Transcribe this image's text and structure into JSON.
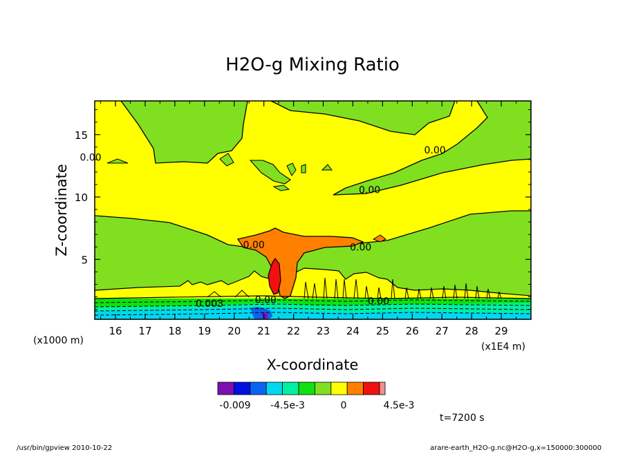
{
  "chart_data": {
    "type": "heatmap",
    "title": "H2O-g Mixing Ratio",
    "xlabel": "X-coordinate",
    "ylabel": "Z-coordinate",
    "x_unit_label": "(x1E4 m)",
    "y_unit_label": "(x1000 m)",
    "x_ticks": [
      "16",
      "17",
      "18",
      "19",
      "20",
      "21",
      "22",
      "23",
      "24",
      "25",
      "26",
      "27",
      "28",
      "29"
    ],
    "y_ticks": [
      "5",
      "10",
      "15"
    ],
    "xlim": [
      15.3,
      30.0
    ],
    "ylim": [
      0.2,
      17.7
    ],
    "contour_labels": [
      {
        "text": "0.00",
        "x": 14.8,
        "y": 12.9
      },
      {
        "text": "0.00",
        "x": 26.4,
        "y": 13.5
      },
      {
        "text": "0.00",
        "x": 24.2,
        "y": 10.3
      },
      {
        "text": "0.00",
        "x": 20.3,
        "y": 5.9
      },
      {
        "text": "0.00",
        "x": 23.9,
        "y": 5.7
      },
      {
        "text": "0.003",
        "x": 18.7,
        "y": 1.2
      },
      {
        "text": "0.00",
        "x": 20.7,
        "y": 1.5
      },
      {
        "text": "0.00",
        "x": 24.5,
        "y": 1.4
      }
    ],
    "colorbar": {
      "colors": [
        "#7a10b0",
        "#0010e0",
        "#0a64f0",
        "#00d8f0",
        "#00f0a0",
        "#10e010",
        "#80e020",
        "#ffff00",
        "#ff8000",
        "#f01010",
        "#f09090"
      ],
      "labels": [
        "-0.009",
        "-4.5e-3",
        "0",
        "4.5e-3"
      ]
    },
    "time_label": "t=7200 s"
  },
  "footer": {
    "left": "/usr/bin/gpview  2010-10-22",
    "right": "arare-earth_H2O-g.nc@H2O-g,x=150000:300000"
  }
}
